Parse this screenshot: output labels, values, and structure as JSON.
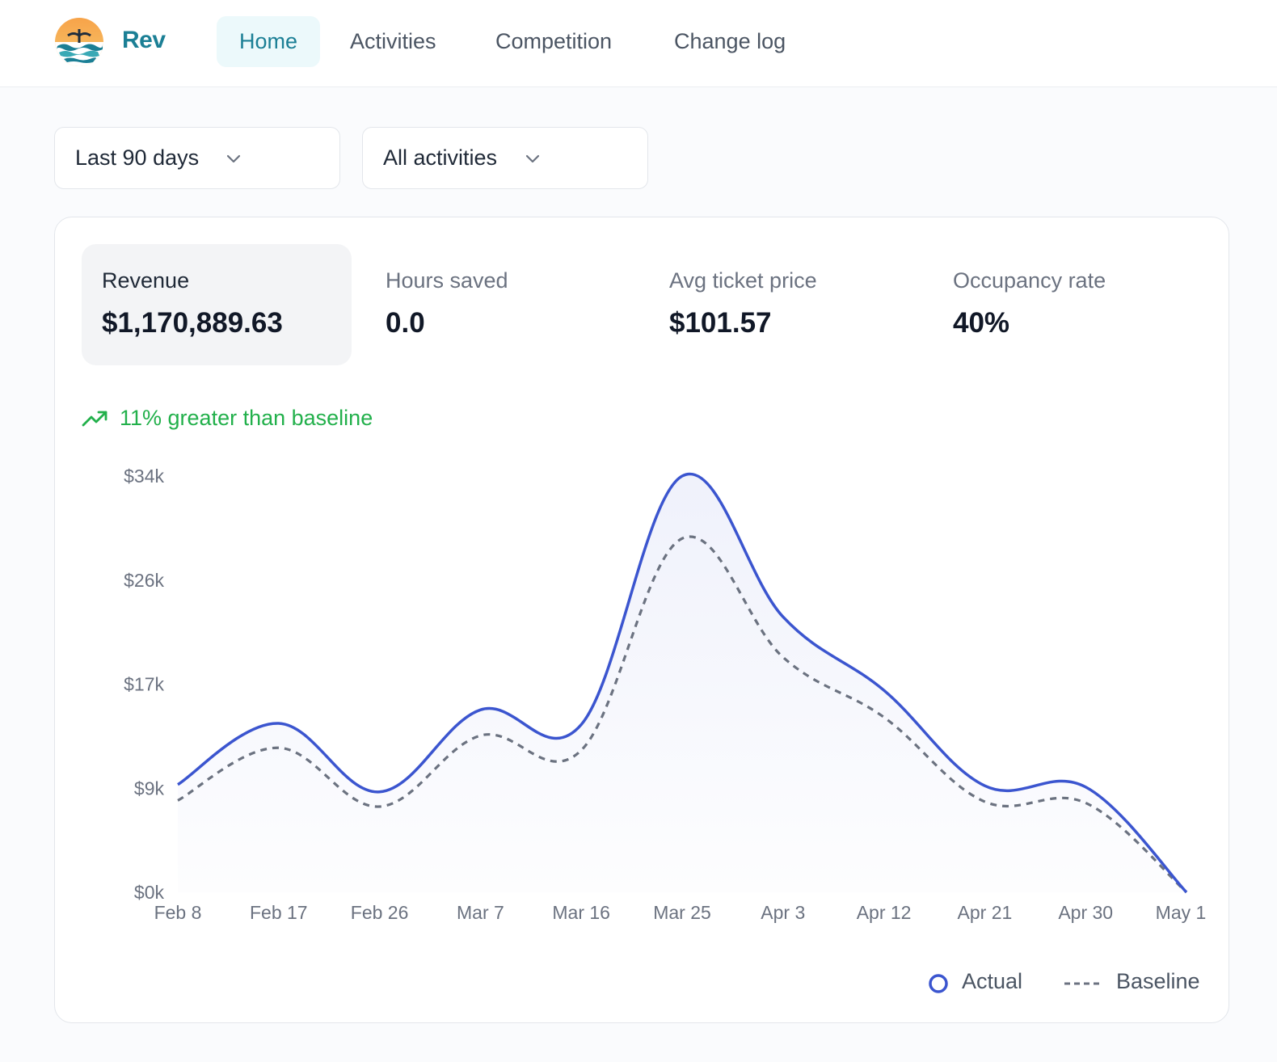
{
  "header": {
    "brand": "Rev",
    "tabs": [
      {
        "label": "Home",
        "active": true
      },
      {
        "label": "Activities",
        "active": false
      },
      {
        "label": "Competition",
        "active": false
      },
      {
        "label": "Change log",
        "active": false
      }
    ]
  },
  "filters": {
    "date_range": "Last 90 days",
    "activity": "All activities"
  },
  "metrics": [
    {
      "label": "Revenue",
      "value": "$1,170,889.63",
      "selected": true
    },
    {
      "label": "Hours saved",
      "value": "0.0",
      "selected": false
    },
    {
      "label": "Avg ticket price",
      "value": "$101.57",
      "selected": false
    },
    {
      "label": "Occupancy rate",
      "value": "40%",
      "selected": false
    }
  ],
  "trend": {
    "text": "11% greater than baseline",
    "icon": "trending-up-icon",
    "color": "#22b04b"
  },
  "chart_data": {
    "type": "area",
    "categories": [
      "Feb 8",
      "Feb 17",
      "Feb 26",
      "Mar 7",
      "Mar 16",
      "Mar 25",
      "Apr 3",
      "Apr 12",
      "Apr 21",
      "Apr 30",
      "May 1"
    ],
    "y_ticks": [
      "$34k",
      "$26k",
      "$17k",
      "$9k",
      "$0k"
    ],
    "ylim": [
      0,
      34000
    ],
    "grid": false,
    "legend_position": "bottom-right",
    "series": [
      {
        "name": "Actual",
        "style": "solid",
        "color": "#3b55cf",
        "values": [
          8800,
          13800,
          8200,
          14900,
          13700,
          34000,
          22500,
          16500,
          8700,
          8600,
          0
        ]
      },
      {
        "name": "Baseline",
        "style": "dashed",
        "color": "#6b7280",
        "values": [
          7500,
          11800,
          7000,
          12800,
          11600,
          28900,
          19200,
          14300,
          7400,
          7300,
          0
        ]
      }
    ]
  }
}
